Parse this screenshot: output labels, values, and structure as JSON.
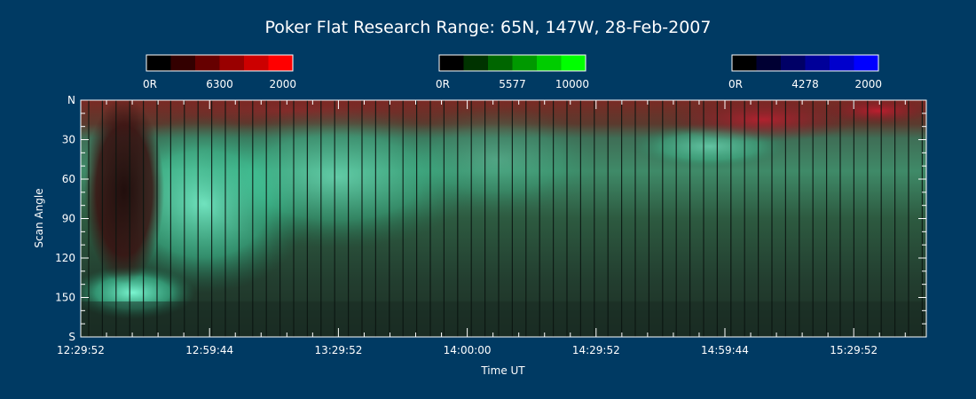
{
  "chart_data": {
    "type": "heatmap",
    "title": "Poker Flat Research Range: 65N, 147W, 28-Feb-2007",
    "xlabel": "Time UT",
    "ylabel": "Scan Angle",
    "x_ticks": [
      "12:29:52",
      "12:59:44",
      "13:29:52",
      "14:00:00",
      "14:29:52",
      "14:59:44",
      "15:29:52"
    ],
    "y_ticks": [
      "N",
      "30",
      "60",
      "90",
      "120",
      "150",
      "S"
    ],
    "y_tick_values": [
      0,
      30,
      60,
      90,
      120,
      150,
      180
    ],
    "colorbars": [
      {
        "channel": "6300",
        "min_label": "0R",
        "mid_label": "6300",
        "max_label": "2000",
        "steps": [
          "#000000",
          "#330000",
          "#660000",
          "#990000",
          "#cc0000",
          "#ff0000"
        ]
      },
      {
        "channel": "5577",
        "min_label": "0R",
        "mid_label": "5577",
        "max_label": "10000",
        "steps": [
          "#000000",
          "#003300",
          "#006600",
          "#009900",
          "#00cc00",
          "#00ff00"
        ]
      },
      {
        "channel": "4278",
        "min_label": "0R",
        "mid_label": "4278",
        "max_label": "2000",
        "steps": [
          "#000000",
          "#000033",
          "#000066",
          "#000099",
          "#0000cc",
          "#0000ff"
        ]
      }
    ]
  },
  "colors": {
    "background": "#003a63",
    "axis": "#ffffff"
  }
}
